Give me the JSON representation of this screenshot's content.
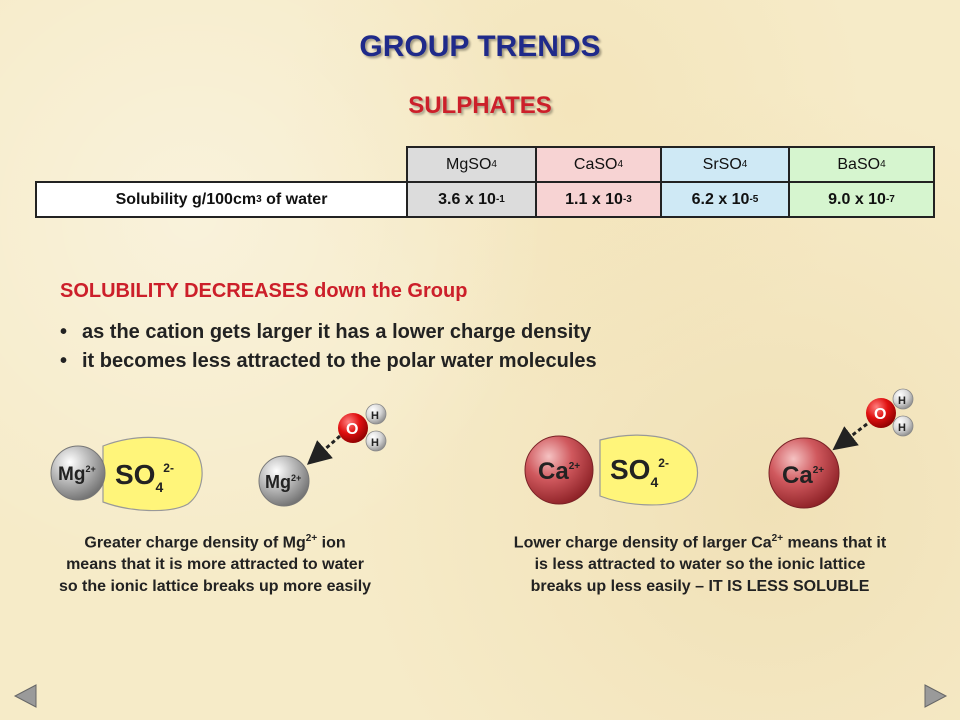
{
  "title": "GROUP TRENDS",
  "subtitle": "SULPHATES",
  "table": {
    "row_label": {
      "text": "Solubility  g/100cm",
      "sup": "3",
      "suffix": " of water"
    },
    "columns": [
      {
        "name": "MgSO",
        "sub": "4",
        "mantissa": "3.6 x 10",
        "exponent": "-1",
        "color": "#dcdcdc"
      },
      {
        "name": "CaSO",
        "sub": "4",
        "mantissa": "1.1 x 10",
        "exponent": "-3",
        "color": "#f7d3d3"
      },
      {
        "name": "SrSO",
        "sub": "4",
        "mantissa": "6.2 x 10",
        "exponent": "-5",
        "color": "#cfe9f5"
      },
      {
        "name": "BaSO",
        "sub": "4",
        "mantissa": "9.0 x 10",
        "exponent": "-7",
        "color": "#d6f5cf"
      }
    ]
  },
  "heading": "SOLUBILITY DECREASES down the Group",
  "bullets": [
    "as the cation gets larger it has a lower charge density",
    "it becomes less attracted to the polar water molecules"
  ],
  "diagram_left": {
    "cation": "Mg",
    "cation_charge": "2+",
    "anion": "SO",
    "anion_sub": "4",
    "anion_charge": "2-",
    "water_o": "O",
    "water_h": "H"
  },
  "diagram_right": {
    "cation": "Ca",
    "cation_charge": "2+",
    "anion": "SO",
    "anion_sub": "4",
    "anion_charge": "2-",
    "water_o": "O",
    "water_h": "H"
  },
  "caption_left": {
    "line1_pre": "Greater charge density of Mg",
    "line1_sup": "2+",
    "line1_post": " ion",
    "line2": "means that it is more attracted to water",
    "line3": "so the ionic lattice breaks up more easily"
  },
  "caption_right": {
    "line1_pre": "Lower charge density of larger Ca",
    "line1_sup": "2+",
    "line1_post": " means that it",
    "line2": "is less attracted to water so the ionic lattice",
    "line3": "breaks up less easily – IT IS LESS SOLUBLE"
  },
  "nav": {
    "prev_icon": "triangle-left-icon",
    "next_icon": "triangle-right-icon"
  }
}
